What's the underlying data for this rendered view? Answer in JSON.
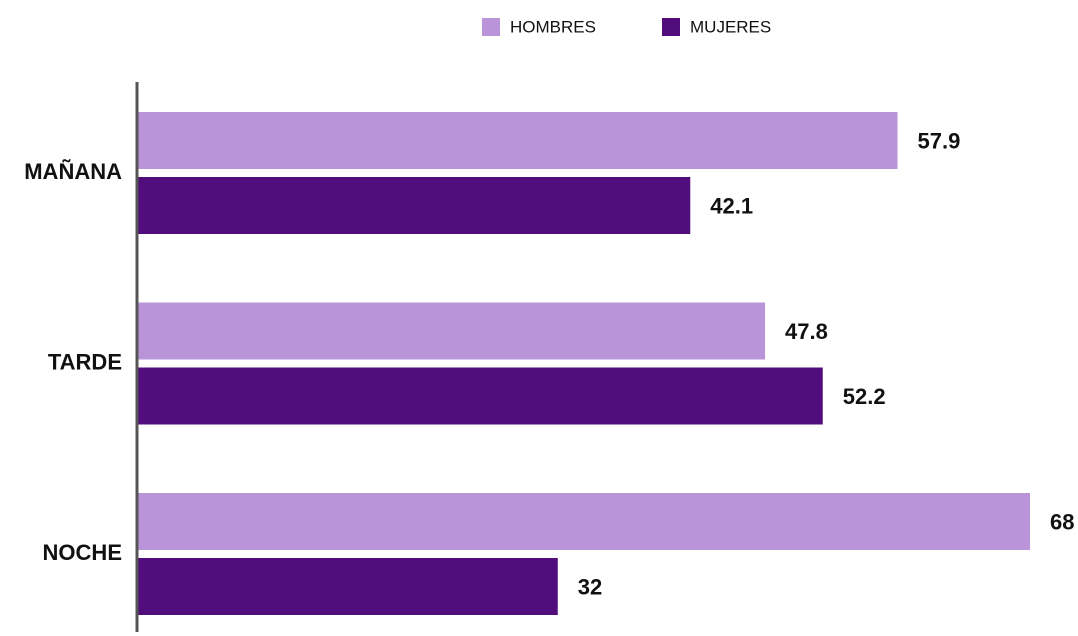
{
  "chart_data": {
    "type": "bar",
    "orientation": "horizontal",
    "categories": [
      "MAÑANA",
      "TARDE",
      "NOCHE"
    ],
    "series": [
      {
        "name": "HOMBRES",
        "color": "#b994d9",
        "values": [
          57.9,
          47.8,
          68
        ]
      },
      {
        "name": "MUJERES",
        "color": "#520d7d",
        "values": [
          42.1,
          52.2,
          32
        ]
      }
    ],
    "legend": "top"
  }
}
